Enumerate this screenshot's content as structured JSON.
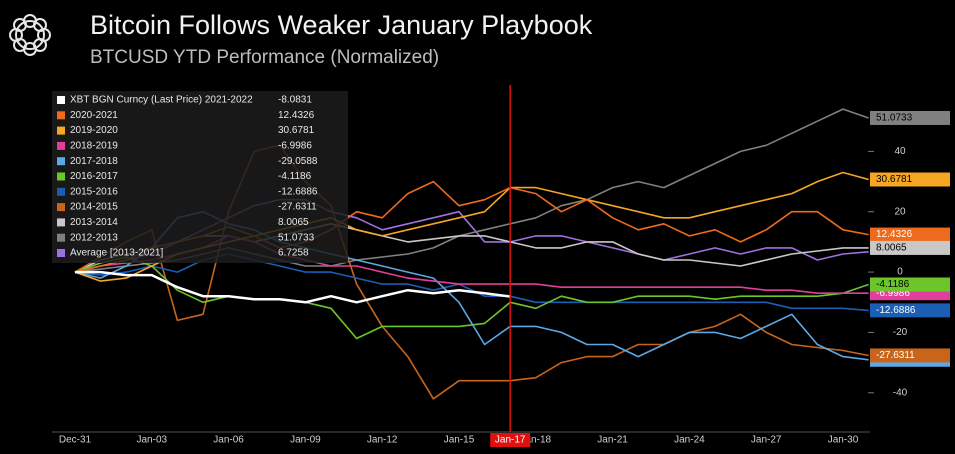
{
  "chart_data": {
    "type": "line",
    "title": "Bitcoin Follows Weaker January Playbook",
    "subtitle": "BTCUSD YTD Performance (Normalized)",
    "categories": [
      "Dec-31",
      null,
      null,
      "Jan-03",
      null,
      null,
      "Jan-06",
      null,
      null,
      "Jan-09",
      null,
      null,
      "Jan-12",
      null,
      null,
      "Jan-15",
      null,
      "Jan-17",
      "Jan-18",
      null,
      null,
      "Jan-21",
      null,
      null,
      "Jan-24",
      null,
      null,
      "Jan-27",
      null,
      null,
      "Jan-30",
      null
    ],
    "highlight": "Jan-17",
    "ylim": [
      -53,
      62
    ],
    "yticks": [
      -40,
      -20,
      0,
      20,
      40
    ],
    "series": [
      {
        "name": "XBT BGN Curncy (Last Price) 2021-2022",
        "color": "#ffffff",
        "last": -8.0831,
        "values": [
          0,
          0,
          -1,
          -1,
          -5,
          -8,
          -8,
          -9,
          -9,
          -10,
          -8,
          -10,
          -8,
          -6,
          -7,
          -6,
          -7,
          -8.0831,
          null,
          null,
          null,
          null,
          null,
          null,
          null,
          null,
          null,
          null,
          null,
          null,
          null,
          null
        ]
      },
      {
        "name": "2020-2021",
        "color": "#ee6a1c",
        "last": 12.4326,
        "values": [
          0,
          2,
          4,
          8,
          10,
          12,
          15,
          12,
          8,
          10,
          14,
          20,
          18,
          26,
          30,
          22,
          24,
          28,
          26,
          20,
          24,
          18,
          14,
          16,
          12,
          14,
          10,
          14,
          20,
          20,
          14,
          12.4326
        ]
      },
      {
        "name": "2019-2020",
        "color": "#f5a623",
        "last": 30.6781,
        "values": [
          0,
          -3,
          -2,
          2,
          6,
          8,
          10,
          12,
          14,
          16,
          18,
          14,
          12,
          14,
          16,
          18,
          20,
          28,
          28,
          26,
          24,
          22,
          20,
          18,
          18,
          20,
          22,
          24,
          26,
          30,
          33,
          30.6781
        ]
      },
      {
        "name": "2018-2019",
        "color": "#e0409c",
        "last": -6.9986,
        "values": [
          0,
          2,
          3,
          4,
          6,
          8,
          12,
          10,
          6,
          4,
          2,
          2,
          0,
          -2,
          -3,
          -4,
          -4,
          -4,
          -4,
          -5,
          -5,
          -5,
          -5,
          -5,
          -5,
          -5,
          -5,
          -6,
          -6,
          -7,
          -7,
          -6.9986
        ]
      },
      {
        "name": "2017-2018",
        "color": "#5aa8e6",
        "last": -29.0588,
        "values": [
          0,
          -2,
          2,
          8,
          18,
          20,
          16,
          14,
          10,
          8,
          6,
          4,
          2,
          0,
          -2,
          -10,
          -24,
          -18,
          -18,
          -20,
          -24,
          -24,
          -28,
          -24,
          -20,
          -20,
          -22,
          -18,
          -14,
          -24,
          -28,
          -29.0588
        ]
      },
      {
        "name": "2016-2017",
        "color": "#6cc62a",
        "last": -4.1186,
        "values": [
          0,
          3,
          5,
          2,
          -6,
          -10,
          -8,
          -9,
          -9,
          -10,
          -12,
          -22,
          -18,
          -18,
          -18,
          -18,
          -17,
          -10,
          -12,
          -8,
          -10,
          -10,
          -8,
          -8,
          -8,
          -9,
          -8,
          -8,
          -8,
          -8,
          -7,
          -4.1186
        ]
      },
      {
        "name": "2015-2016",
        "color": "#1a5fb4",
        "last": -12.6886,
        "values": [
          0,
          -1,
          0,
          2,
          0,
          4,
          6,
          4,
          2,
          0,
          0,
          -2,
          -4,
          -4,
          -6,
          -4,
          -8,
          -8,
          -10,
          -10,
          -10,
          -10,
          -10,
          -10,
          -10,
          -10,
          -10,
          -10,
          -12,
          -12,
          -12,
          -12.6886
        ]
      },
      {
        "name": "2014-2015",
        "color": "#c8651a",
        "last": -27.6311,
        "values": [
          0,
          5,
          10,
          14,
          -16,
          -14,
          20,
          40,
          42,
          30,
          22,
          -4,
          -18,
          -28,
          -42,
          -36,
          -36,
          -36,
          -35,
          -30,
          -28,
          -28,
          -24,
          -24,
          -20,
          -18,
          -14,
          -20,
          -24,
          -25,
          -26,
          -27.6311
        ]
      },
      {
        "name": "2013-2014",
        "color": "#c8c8c8",
        "last": 8.0065,
        "values": [
          0,
          4,
          6,
          8,
          10,
          12,
          12,
          10,
          12,
          14,
          16,
          14,
          12,
          10,
          11,
          12,
          12,
          10,
          8,
          8,
          10,
          10,
          6,
          4,
          4,
          3,
          2,
          4,
          6,
          7,
          8,
          8.0065
        ]
      },
      {
        "name": "2012-2013",
        "color": "#808080",
        "last": 51.0733,
        "values": [
          0,
          1,
          2,
          3,
          4,
          6,
          8,
          6,
          4,
          2,
          2,
          4,
          5,
          6,
          8,
          12,
          14,
          16,
          18,
          22,
          24,
          28,
          30,
          28,
          32,
          36,
          40,
          42,
          46,
          50,
          54,
          51.0733
        ]
      },
      {
        "name": "Average  [2013-2021]",
        "color": "#a070e0",
        "last": 6.7258,
        "values": [
          0,
          2,
          4,
          6,
          10,
          14,
          18,
          22,
          24,
          24,
          20,
          18,
          14,
          16,
          18,
          20,
          10,
          10,
          12,
          12,
          10,
          8,
          6,
          4,
          6,
          8,
          6,
          8,
          8,
          4,
          6,
          6.7258
        ]
      }
    ]
  }
}
